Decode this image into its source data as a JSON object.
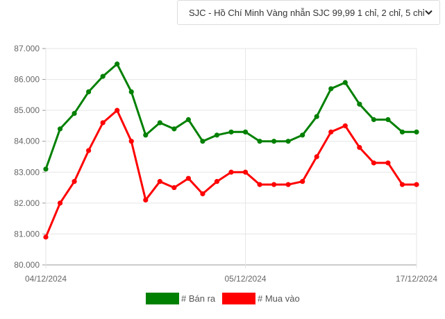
{
  "selector": {
    "label": "SJC - Hồ Chí Minh Vàng nhẫn SJC 99,99 1 chỉ, 2 chỉ, 5 chỉ",
    "icon": "chevron-down-icon"
  },
  "chart_data": {
    "type": "line",
    "title": "",
    "xlabel": "",
    "ylabel": "",
    "x_tick_labels": [
      "04/12/2024",
      "05/12/2024",
      "17/12/2024"
    ],
    "x_tick_indices": [
      0,
      14,
      26
    ],
    "y_tick_labels": [
      "80.000",
      "81.000",
      "82.000",
      "83.000",
      "84.000",
      "85.000",
      "86.000",
      "87.000"
    ],
    "ylim": [
      80000,
      87000
    ],
    "grid": true,
    "legend_position": "bottom",
    "point_count": 27,
    "series": [
      {
        "name": "# Bán ra",
        "color": "#008000",
        "values": [
          83100,
          84400,
          84900,
          85600,
          86100,
          86500,
          85600,
          84200,
          84600,
          84400,
          84700,
          84000,
          84200,
          84300,
          84300,
          84000,
          84000,
          84000,
          84200,
          84800,
          85700,
          85900,
          85200,
          84700,
          84700,
          84300,
          84300
        ]
      },
      {
        "name": "# Mua vào",
        "color": "#ff0000",
        "values": [
          80900,
          82000,
          82700,
          83700,
          84600,
          85000,
          84000,
          82100,
          82700,
          82500,
          82800,
          82300,
          82700,
          83000,
          83000,
          82600,
          82600,
          82600,
          82700,
          83500,
          84300,
          84500,
          83800,
          83300,
          83300,
          82600,
          82600
        ]
      }
    ]
  }
}
